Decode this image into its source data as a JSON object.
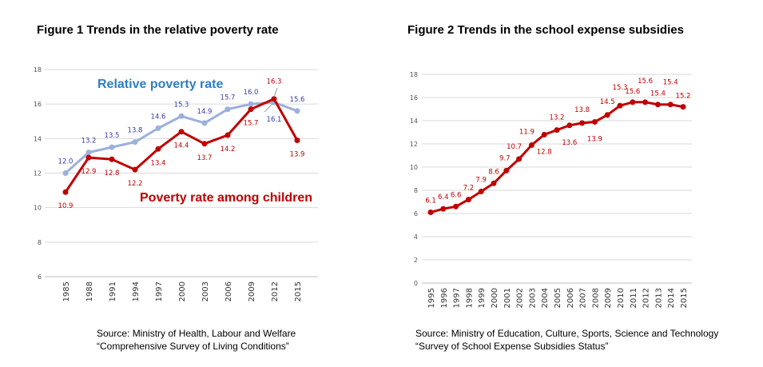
{
  "chart_data": [
    {
      "type": "line",
      "title": "Figure 1 Trends in  the relative poverty rate",
      "categories": [
        "1985",
        "1988",
        "1991",
        "1994",
        "1997",
        "2000",
        "2003",
        "2006",
        "2009",
        "2012",
        "2015"
      ],
      "ylim": [
        6,
        18
      ],
      "yticks": [
        "6",
        "8",
        "10",
        "12",
        "14",
        "16",
        "18"
      ],
      "series": [
        {
          "name": "Relative poverty rate",
          "color": "#9bb0dc",
          "label_color": "#3a3ab4",
          "name_color": "#2e7fc1",
          "values": [
            12.0,
            13.2,
            13.5,
            13.8,
            14.6,
            15.3,
            14.9,
            15.7,
            16.0,
            16.1,
            15.6
          ],
          "labels": [
            "12.0",
            "13.2",
            "13.5",
            "13.8",
            "14.6",
            "15.3",
            "14.9",
            "15.7",
            "16.0",
            "16.1",
            "15.6"
          ]
        },
        {
          "name": "Poverty rate among children",
          "color": "#c00000",
          "label_color": "#c00000",
          "name_color": "#c00000",
          "values": [
            10.9,
            12.9,
            12.8,
            12.2,
            13.4,
            14.4,
            13.7,
            14.2,
            15.7,
            16.3,
            13.9
          ],
          "labels": [
            "10.9",
            "12.9",
            "12.8",
            "12.2",
            "13.4",
            "14.4",
            "13.7",
            "14.2",
            "15.7",
            "16.3",
            "13.9"
          ]
        }
      ],
      "source": [
        "Source: Ministry of Health, Labour and Welfare",
        "“Comprehensive  Survey of Living Conditions”"
      ]
    },
    {
      "type": "line",
      "title": "Figure 2 Trends in the school expense subsidies",
      "categories": [
        "1995",
        "1996",
        "1997",
        "1998",
        "1999",
        "2000",
        "2001",
        "2002",
        "2003",
        "2004",
        "2005",
        "2006",
        "2007",
        "2008",
        "2009",
        "2010",
        "2011",
        "2012",
        "2013",
        "2014",
        "2015"
      ],
      "ylim": [
        0,
        18
      ],
      "yticks": [
        "0",
        "2",
        "4",
        "6",
        "8",
        "10",
        "12",
        "14",
        "16",
        "18"
      ],
      "series": [
        {
          "name": "School expense subsidies",
          "color": "#c00000",
          "label_color": "#c00000",
          "values": [
            6.1,
            6.4,
            6.6,
            7.2,
            7.9,
            8.6,
            9.7,
            10.7,
            11.9,
            12.8,
            13.2,
            13.6,
            13.8,
            13.9,
            14.5,
            15.3,
            15.6,
            15.6,
            15.4,
            15.4,
            15.2
          ],
          "labels": [
            "6.1",
            "6.4",
            "6.6",
            "7.2",
            "7.9",
            "8.6",
            "9.7",
            "10.7",
            "11.9",
            "12.8",
            "13.2",
            "13.6",
            "13.8",
            "13.9",
            "14.5",
            "15.3",
            "15.6",
            "15.6",
            "15.4",
            "15.4",
            "15.2"
          ]
        }
      ],
      "source": [
        "Source: Ministry of Education, Culture, Sports, Science and Technology",
        " “Survey of School Expense Subsidies Status”"
      ]
    }
  ]
}
